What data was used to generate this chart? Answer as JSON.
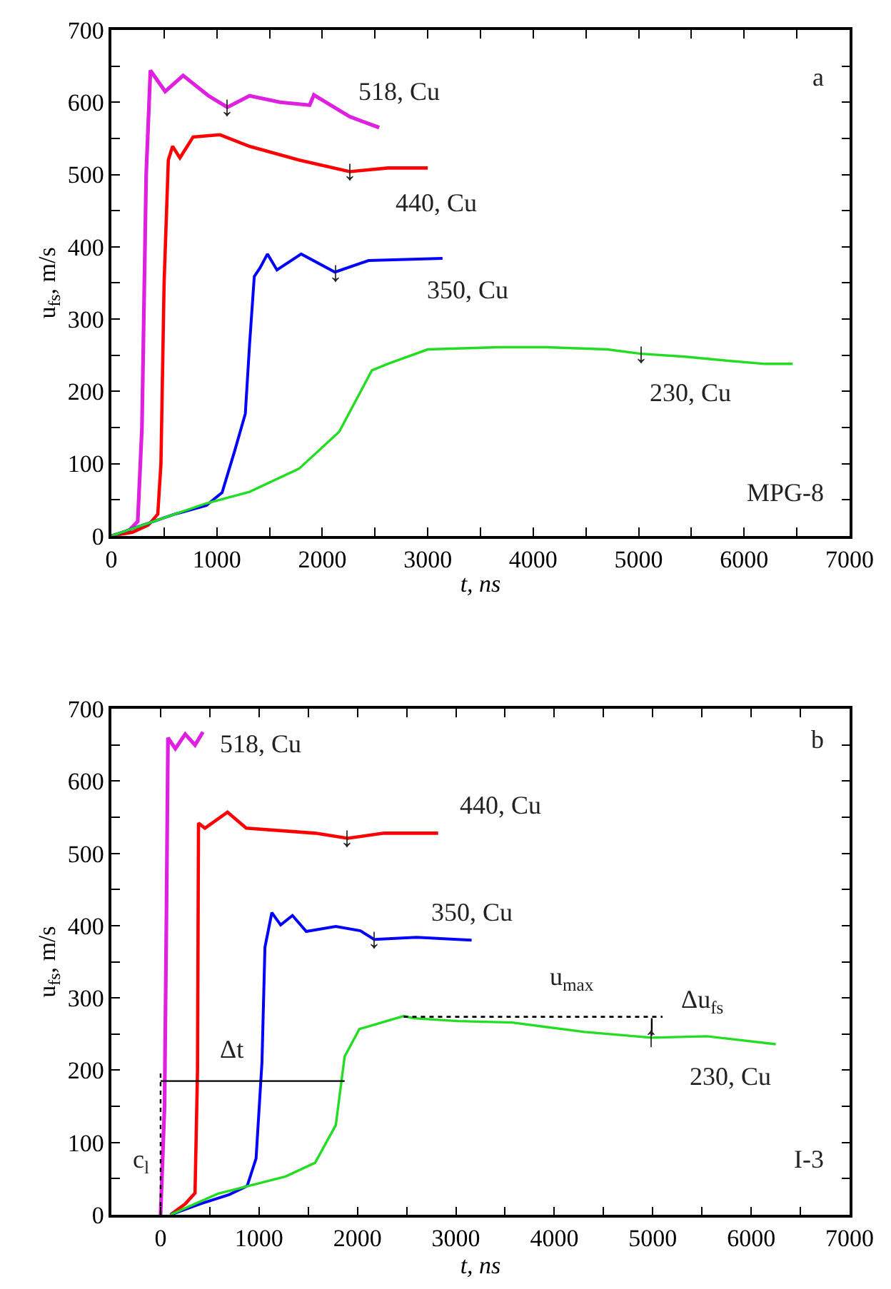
{
  "chart_data": [
    {
      "type": "line",
      "xlabel": "t, ns",
      "ylabel": "u$_{fs}$, m/s",
      "xlim": [
        0,
        7000
      ],
      "xticks": [
        0,
        {
          "value": 500,
          "label": null
        },
        1000,
        {
          "value": 1500,
          "label": null
        },
        2000,
        {
          "value": 2500,
          "label": null
        },
        3000,
        {
          "value": 3500,
          "label": null
        },
        4000,
        {
          "value": 4500,
          "label": null
        },
        5000,
        {
          "value": 5500,
          "label": null
        },
        6000,
        {
          "value": 6500,
          "label": null
        },
        7000
      ],
      "ylim": [
        0,
        700
      ],
      "yticks": [
        0,
        {
          "value": 50,
          "label": null
        },
        100,
        {
          "value": 150,
          "label": null
        },
        200,
        {
          "value": 250,
          "label": null
        },
        300,
        {
          "value": 350,
          "label": null
        },
        400,
        {
          "value": 450,
          "label": null
        },
        500,
        {
          "value": 550,
          "label": null
        },
        600,
        {
          "value": 650,
          "label": null
        },
        700
      ],
      "legend": false,
      "marker": "none",
      "series": [
        {
          "name": "518, Cu",
          "color": "#e020e0",
          "x": [
            0,
            150,
            250,
            290,
            330,
            370,
            510,
            680,
            920,
            1100,
            1310,
            1600,
            1880,
            1920,
            2260,
            2540
          ],
          "values": [
            0,
            5,
            20,
            150,
            500,
            644,
            615,
            637,
            609,
            593,
            609,
            600,
            596,
            610,
            580,
            565
          ]
        },
        {
          "name": "440, Cu",
          "color": "#ff0000",
          "x": [
            0,
            200,
            350,
            440,
            470,
            500,
            540,
            580,
            650,
            775,
            1030,
            1310,
            1780,
            2260,
            2620,
            3000
          ],
          "values": [
            0,
            5,
            15,
            30,
            100,
            350,
            520,
            539,
            523,
            552,
            555,
            539,
            520,
            504,
            509,
            509
          ]
        },
        {
          "name": "350, Cu",
          "color": "#0000ff",
          "x": [
            0,
            300,
            600,
            900,
            1050,
            1170,
            1270,
            1310,
            1355,
            1410,
            1480,
            1570,
            1800,
            2120,
            2440,
            3140
          ],
          "values": [
            0,
            15,
            30,
            42,
            60,
            118,
            169,
            264,
            359,
            371,
            390,
            368,
            390,
            365,
            381,
            384
          ]
        },
        {
          "name": "230, Cu",
          "color": "#22dd22",
          "x": [
            0,
            300,
            600,
            900,
            1310,
            1780,
            2160,
            2470,
            2620,
            3000,
            3670,
            4130,
            4700,
            5020,
            5440,
            5870,
            6200,
            6460
          ],
          "values": [
            0,
            15,
            30,
            45,
            61,
            93,
            144,
            229,
            238,
            258,
            261,
            261,
            258,
            252,
            248,
            242,
            238,
            238
          ]
        }
      ],
      "annotations": [
        "a",
        "MPG-8",
        {
          "text": "↓",
          "x": 1100,
          "y": 593
        },
        {
          "text": "↓",
          "x": 2260,
          "y": 504
        },
        {
          "text": "↓",
          "x": 2120,
          "y": 365
        },
        {
          "text": "↓",
          "x": 5020,
          "y": 252
        }
      ]
    },
    {
      "type": "line",
      "xlabel": "t, ns",
      "ylabel": "u$_{fs}$, m/s",
      "xlim": [
        -500,
        7000
      ],
      "xticks": [
        0,
        {
          "value": 500,
          "label": null
        },
        1000,
        {
          "value": 1500,
          "label": null
        },
        2000,
        {
          "value": 2500,
          "label": null
        },
        3000,
        {
          "value": 3500,
          "label": null
        },
        4000,
        {
          "value": 4500,
          "label": null
        },
        5000,
        {
          "value": 5500,
          "label": null
        },
        6000,
        {
          "value": 6500,
          "label": null
        },
        7000
      ],
      "ylim": [
        0,
        700
      ],
      "yticks": [
        0,
        {
          "value": 50,
          "label": null
        },
        100,
        {
          "value": 150,
          "label": null
        },
        200,
        {
          "value": 250,
          "label": null
        },
        300,
        {
          "value": 350,
          "label": null
        },
        400,
        {
          "value": 450,
          "label": null
        },
        500,
        {
          "value": 550,
          "label": null
        },
        600,
        {
          "value": 650,
          "label": null
        },
        700
      ],
      "legend": false,
      "marker": "none",
      "series": [
        {
          "name": "518, Cu",
          "color": "#e020e0",
          "x": [
            0,
            40,
            60,
            75,
            150,
            250,
            350,
            430
          ],
          "values": [
            0,
            150,
            420,
            660,
            645,
            665,
            650,
            668
          ]
        },
        {
          "name": "440, Cu",
          "color": "#ff0000",
          "x": [
            100,
            250,
            350,
            375,
            385,
            450,
            680,
            870,
            1570,
            1900,
            2270,
            2820
          ],
          "values": [
            0,
            15,
            30,
            200,
            542,
            535,
            557,
            535,
            528,
            521,
            528,
            528
          ]
        },
        {
          "name": "350, Cu",
          "color": "#0000ff",
          "x": [
            100,
            400,
            700,
            880,
            970,
            1030,
            1060,
            1130,
            1220,
            1340,
            1480,
            1780,
            2030,
            2170,
            2600,
            3160
          ],
          "values": [
            0,
            15,
            28,
            40,
            78,
            211,
            370,
            418,
            401,
            414,
            392,
            399,
            393,
            381,
            384,
            380
          ]
        },
        {
          "name": "230, Cu",
          "color": "#22dd22",
          "x": [
            100,
            580,
            1270,
            1570,
            1780,
            1870,
            2020,
            2470,
            2570,
            3020,
            3570,
            4310,
            4990,
            5550,
            6250
          ],
          "values": [
            0,
            29,
            53,
            72,
            124,
            219,
            257,
            275,
            272,
            268,
            266,
            253,
            245,
            247,
            236
          ]
        },
        {
          "color": "#000000",
          "line_style": "dotted",
          "x": [
            2470,
            5100
          ],
          "values": [
            274,
            274
          ]
        },
        {
          "color": "#000000",
          "line_style": "dotted",
          "x": [
            0,
            0
          ],
          "values": [
            0,
            200
          ]
        },
        {
          "color": "#000000",
          "line_style": "solid",
          "x": [
            0,
            1870
          ],
          "values": [
            185,
            185
          ]
        },
        {
          "color": "#000000",
          "line_style": "solid",
          "x": [
            4990,
            4990
          ],
          "values": [
            248,
            272
          ]
        }
      ],
      "annotations": [
        "b",
        "I-3",
        "u$_{max}$",
        "c$_{l}$",
        "Δt",
        "Δu$_{fs}$",
        {
          "text": "↓",
          "x": 1900,
          "y": 521
        },
        {
          "text": "↓",
          "x": 2170,
          "y": 381
        },
        {
          "text": "↑",
          "x": 4990,
          "y": 245
        }
      ]
    }
  ]
}
